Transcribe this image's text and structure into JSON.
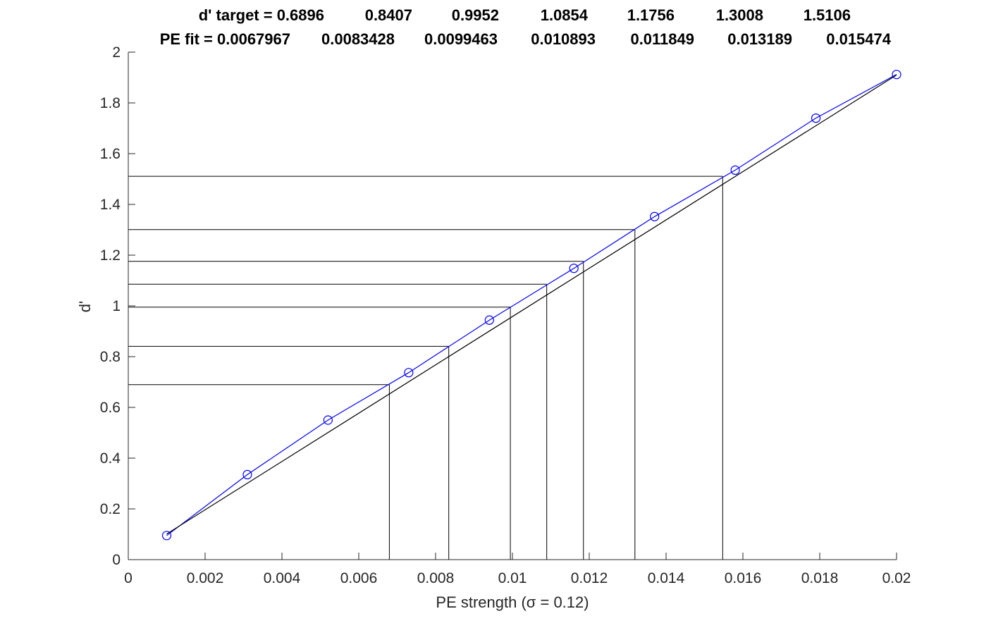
{
  "chart_data": {
    "type": "line",
    "title": {
      "line1_label": "d' target = ",
      "line1_values": [
        "0.6896",
        "0.8407",
        "0.9952",
        "1.0854",
        "1.1756",
        "1.3008",
        "1.5106"
      ],
      "line2_label": "PE fit = ",
      "line2_values": [
        "0.0067967",
        "0.0083428",
        "0.0099463",
        "0.010893",
        "0.011849",
        "0.013189",
        "0.015474"
      ]
    },
    "xlabel": "PE strength (σ = 0.12)",
    "ylabel": "d'",
    "xlim": [
      0,
      0.02
    ],
    "ylim": [
      0,
      2
    ],
    "xticks": [
      "0",
      "0.002",
      "0.004",
      "0.006",
      "0.008",
      "0.01",
      "0.012",
      "0.014",
      "0.016",
      "0.018",
      "0.02"
    ],
    "yticks": [
      "0",
      "0.2",
      "0.4",
      "0.6",
      "0.8",
      "1",
      "1.2",
      "1.4",
      "1.6",
      "1.8",
      "2"
    ],
    "grid": false,
    "series": [
      {
        "kind": "data",
        "marker": "circle",
        "color": "#0000ff",
        "x": [
          0.001,
          0.0031,
          0.0052,
          0.0073,
          0.0094,
          0.0116,
          0.0137,
          0.0158,
          0.0179,
          0.02
        ],
        "y": [
          0.095,
          0.335,
          0.55,
          0.737,
          0.944,
          1.148,
          1.352,
          1.535,
          1.74,
          1.912
        ]
      },
      {
        "kind": "fit",
        "color": "#000000",
        "x": [
          0.001,
          0.02
        ],
        "y": [
          0.101,
          1.91
        ]
      }
    ],
    "threshold_lines": {
      "color": "#000000",
      "d_target": [
        0.6896,
        0.8407,
        0.9952,
        1.0854,
        1.1756,
        1.3008,
        1.5106
      ],
      "pe_fit": [
        0.0067967,
        0.0083428,
        0.0099463,
        0.010893,
        0.011849,
        0.013189,
        0.015474
      ]
    }
  }
}
